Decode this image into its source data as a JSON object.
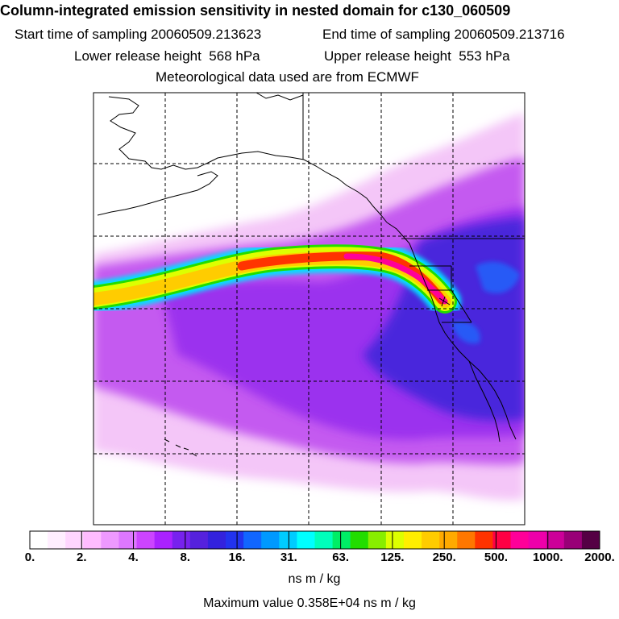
{
  "title": "Column-integrated emission sensitivity in nested domain for c130_060509",
  "start_label": "Start time of sampling",
  "start_value": "20060509.213623",
  "end_label": "End time of sampling",
  "end_value": "20060509.213716",
  "lower_label": "Lower release height",
  "lower_value": "568 hPa",
  "upper_label": "Upper release height",
  "upper_value": "553 hPa",
  "met_data": "Meteorological data used are from ECMWF",
  "colorbar": {
    "tick_labels": [
      "0.",
      "2.",
      "4.",
      "8.",
      "16.",
      "31.",
      "63.",
      "125.",
      "250.",
      "500.",
      "1000.",
      "2000."
    ],
    "colors": [
      "#ffffff",
      "#ffeeff",
      "#ffd6ff",
      "#ffbcff",
      "#ee99ff",
      "#dd77ff",
      "#cc44ff",
      "#aa22ff",
      "#7722ee",
      "#5522dd",
      "#3322dd",
      "#2233ee",
      "#1166ff",
      "#0099ff",
      "#00ccff",
      "#00ffff",
      "#00ffbb",
      "#00ee66",
      "#22dd00",
      "#88ee00",
      "#ddff00",
      "#ffee00",
      "#ffcc00",
      "#ffaa00",
      "#ff7700",
      "#ff3300",
      "#ff0044",
      "#ff0099",
      "#ee00aa",
      "#cc0099",
      "#990077",
      "#550044"
    ],
    "units": "ns m / kg"
  },
  "max_value_label": "Maximum value  0.358E+04 ns m / kg"
}
